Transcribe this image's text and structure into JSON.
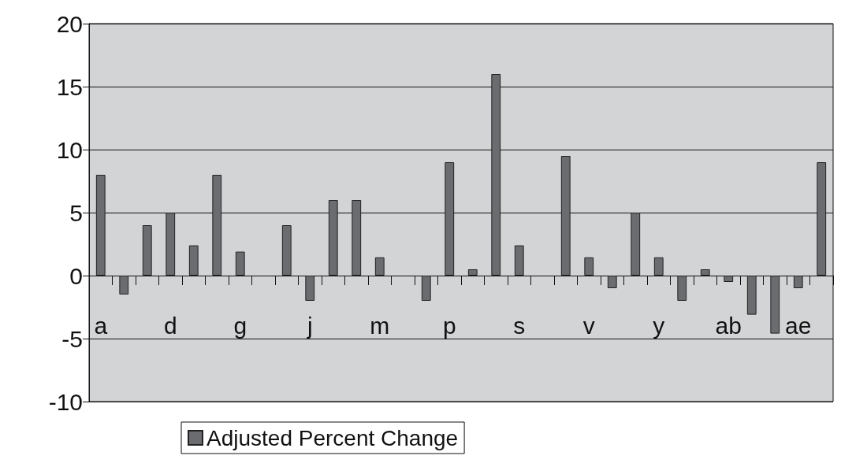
{
  "chart_data": {
    "type": "bar",
    "categories": [
      "a",
      null,
      null,
      "d",
      null,
      null,
      "g",
      null,
      null,
      "j",
      null,
      null,
      "m",
      null,
      null,
      "p",
      null,
      null,
      "s",
      null,
      null,
      "v",
      null,
      null,
      "y",
      null,
      null,
      "ab",
      null,
      null,
      "ae",
      null
    ],
    "series": [
      {
        "name": "Adjusted Percent Change",
        "color": "#6b6c70",
        "values": [
          8,
          -1.5,
          4,
          5,
          2.4,
          8,
          1.9,
          0,
          4,
          -2,
          6,
          6,
          1.45,
          0,
          -2,
          9,
          0.5,
          16,
          2.4,
          0,
          9.5,
          1.45,
          -1,
          5,
          1.45,
          -2,
          0.5,
          -0.5,
          -3.1,
          -4.6,
          -1,
          9
        ]
      }
    ],
    "ylim": [
      -10,
      20
    ],
    "yticks": [
      -10,
      -5,
      0,
      5,
      10,
      15,
      20
    ],
    "grid": "y",
    "legend": "bottom"
  }
}
